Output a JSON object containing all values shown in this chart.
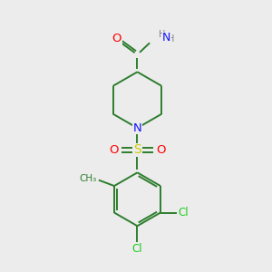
{
  "background_color": "#ececec",
  "bond_color": "#2d7d2d",
  "atom_colors": {
    "O": "#ff0000",
    "N": "#1414ff",
    "S": "#cccc00",
    "Cl": "#1fcc1f",
    "C": "#2d7d2d",
    "H": "#808080"
  },
  "figsize": [
    3.0,
    3.0
  ],
  "dpi": 100,
  "lw": 1.4,
  "font_size": 8.5,
  "font_size_small": 7.5
}
